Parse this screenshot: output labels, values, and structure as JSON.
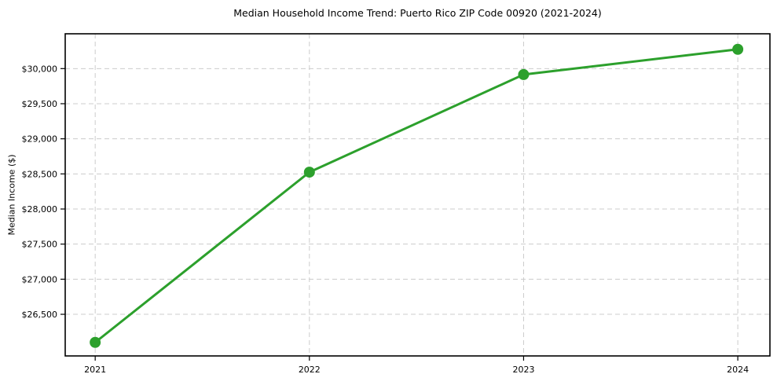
{
  "chart_data": {
    "type": "line",
    "title": "Median Household Income Trend: Puerto Rico ZIP Code 00920 (2021-2024)",
    "xlabel": "",
    "ylabel": "Median Income ($)",
    "categories": [
      "2021",
      "2022",
      "2023",
      "2024"
    ],
    "x": [
      2021,
      2022,
      2023,
      2024
    ],
    "series": [
      {
        "name": "Median Household Income",
        "values": [
          26100,
          28525,
          29915,
          30275
        ]
      }
    ],
    "ytick_values": [
      26500,
      27000,
      27500,
      28000,
      28500,
      29000,
      29500,
      30000
    ],
    "ytick_labels": [
      "$26,500",
      "$27,000",
      "$27,500",
      "$28,000",
      "$28,500",
      "$29,000",
      "$29,500",
      "$30,000"
    ],
    "xlim": [
      2020.86,
      2024.15
    ],
    "ylim": [
      25907,
      30496
    ],
    "grid": true,
    "grid_style": "dashed",
    "legend_position": "none",
    "line_color": "#2ca02c",
    "marker": "circle",
    "grid_color": "#cccccc",
    "axis_color": "#000000",
    "text_color": "#000000",
    "background": "#ffffff"
  }
}
